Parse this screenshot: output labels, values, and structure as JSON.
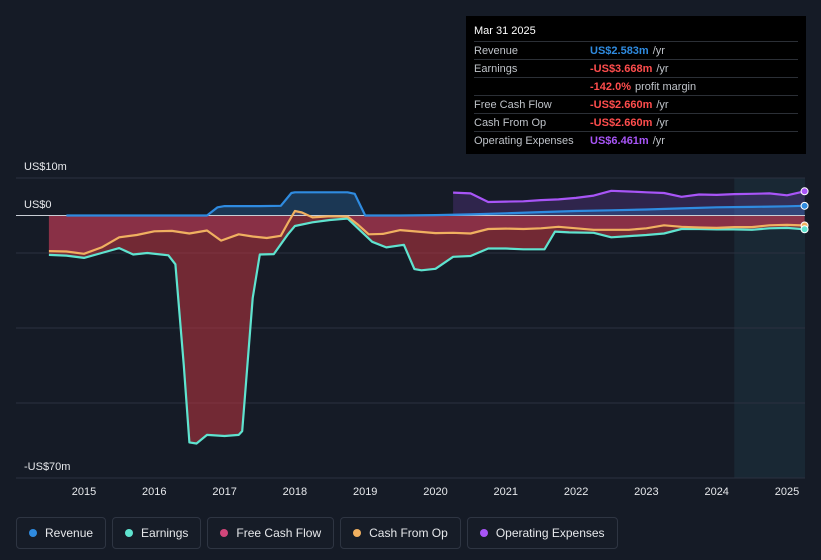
{
  "tooltip": {
    "date": "Mar 31 2025",
    "rows": [
      {
        "label": "Revenue",
        "value": "US$2.583m",
        "unit": "/yr",
        "color": "#2f8be0"
      },
      {
        "label": "Earnings",
        "value": "-US$3.668m",
        "unit": "/yr",
        "color": "#ff4d4d"
      },
      {
        "label": "",
        "value": "-142.0%",
        "unit": "profit margin",
        "color": "#ff4d4d"
      },
      {
        "label": "Free Cash Flow",
        "value": "-US$2.660m",
        "unit": "/yr",
        "color": "#ff4d4d"
      },
      {
        "label": "Cash From Op",
        "value": "-US$2.660m",
        "unit": "/yr",
        "color": "#ff4d4d"
      },
      {
        "label": "Operating Expenses",
        "value": "US$6.461m",
        "unit": "/yr",
        "color": "#a855f7"
      }
    ]
  },
  "legend": [
    {
      "label": "Revenue",
      "color": "#2f8be0"
    },
    {
      "label": "Earnings",
      "color": "#5fe3cf"
    },
    {
      "label": "Free Cash Flow",
      "color": "#d1467a"
    },
    {
      "label": "Cash From Op",
      "color": "#f0b060"
    },
    {
      "label": "Operating Expenses",
      "color": "#a855f7"
    }
  ],
  "chart_data": {
    "type": "line",
    "title": "",
    "y_axis": {
      "top_label": "US$10m",
      "zero_label": "US$0",
      "bottom_label": "-US$70m",
      "ylim": [
        -70,
        10
      ],
      "unit": "US$m"
    },
    "x_axis": {
      "ticks": [
        "2015",
        "2016",
        "2017",
        "2018",
        "2019",
        "2020",
        "2021",
        "2022",
        "2023",
        "2024",
        "2025"
      ],
      "range": [
        2014.5,
        2025.25
      ]
    },
    "forecast_shading_start": 2024.25,
    "series": [
      {
        "name": "Revenue",
        "color": "#2f8be0",
        "points": [
          [
            2014.75,
            0
          ],
          [
            2016.0,
            0
          ],
          [
            2016.75,
            0
          ],
          [
            2016.9,
            2.2
          ],
          [
            2017.0,
            2.5
          ],
          [
            2017.5,
            2.5
          ],
          [
            2017.8,
            2.6
          ],
          [
            2017.95,
            6.0
          ],
          [
            2018.0,
            6.2
          ],
          [
            2018.75,
            6.2
          ],
          [
            2018.85,
            5.8
          ],
          [
            2019.0,
            0
          ],
          [
            2019.5,
            0
          ],
          [
            2020.0,
            0.1
          ],
          [
            2020.5,
            0.3
          ],
          [
            2021.0,
            0.6
          ],
          [
            2021.5,
            0.9
          ],
          [
            2022.0,
            1.2
          ],
          [
            2022.5,
            1.4
          ],
          [
            2023.0,
            1.6
          ],
          [
            2023.5,
            1.9
          ],
          [
            2024.0,
            2.2
          ],
          [
            2024.5,
            2.3
          ],
          [
            2025.0,
            2.45
          ],
          [
            2025.25,
            2.583
          ]
        ]
      },
      {
        "name": "Earnings",
        "color": "#5fe3cf",
        "points": [
          [
            2014.5,
            -10.5
          ],
          [
            2014.75,
            -10.7
          ],
          [
            2015.0,
            -11.3
          ],
          [
            2015.25,
            -10.0
          ],
          [
            2015.5,
            -8.7
          ],
          [
            2015.7,
            -10.4
          ],
          [
            2015.9,
            -10.0
          ],
          [
            2016.2,
            -10.6
          ],
          [
            2016.3,
            -13.0
          ],
          [
            2016.42,
            -40.0
          ],
          [
            2016.5,
            -60.5
          ],
          [
            2016.6,
            -60.8
          ],
          [
            2016.75,
            -58.5
          ],
          [
            2017.0,
            -58.8
          ],
          [
            2017.2,
            -58.5
          ],
          [
            2017.25,
            -57.5
          ],
          [
            2017.4,
            -22.0
          ],
          [
            2017.5,
            -10.4
          ],
          [
            2017.7,
            -10.3
          ],
          [
            2017.9,
            -5.0
          ],
          [
            2018.0,
            -2.8
          ],
          [
            2018.25,
            -1.8
          ],
          [
            2018.5,
            -1.2
          ],
          [
            2018.75,
            -0.8
          ],
          [
            2018.9,
            -3.5
          ],
          [
            2019.1,
            -7.0
          ],
          [
            2019.3,
            -8.5
          ],
          [
            2019.55,
            -7.8
          ],
          [
            2019.7,
            -14.3
          ],
          [
            2019.8,
            -14.6
          ],
          [
            2020.0,
            -14.2
          ],
          [
            2020.25,
            -11.0
          ],
          [
            2020.5,
            -10.8
          ],
          [
            2020.75,
            -8.8
          ],
          [
            2021.0,
            -8.8
          ],
          [
            2021.25,
            -9.0
          ],
          [
            2021.55,
            -9.0
          ],
          [
            2021.7,
            -4.3
          ],
          [
            2021.9,
            -4.5
          ],
          [
            2022.25,
            -4.6
          ],
          [
            2022.5,
            -5.8
          ],
          [
            2022.75,
            -5.5
          ],
          [
            2023.0,
            -5.2
          ],
          [
            2023.25,
            -4.8
          ],
          [
            2023.5,
            -3.6
          ],
          [
            2023.75,
            -3.6
          ],
          [
            2024.0,
            -3.7
          ],
          [
            2024.25,
            -3.7
          ],
          [
            2024.5,
            -3.8
          ],
          [
            2024.75,
            -3.4
          ],
          [
            2025.0,
            -3.3
          ],
          [
            2025.25,
            -3.668
          ]
        ]
      },
      {
        "name": "Free Cash Flow",
        "color": "#d1467a",
        "points": [
          [
            2014.5,
            0
          ],
          [
            2025.25,
            -2.66
          ]
        ]
      },
      {
        "name": "Cash From Op",
        "color": "#f0b060",
        "points": [
          [
            2014.5,
            -9.5
          ],
          [
            2014.75,
            -9.6
          ],
          [
            2015.0,
            -10.2
          ],
          [
            2015.25,
            -8.5
          ],
          [
            2015.5,
            -5.8
          ],
          [
            2015.75,
            -5.2
          ],
          [
            2016.0,
            -4.2
          ],
          [
            2016.25,
            -4.1
          ],
          [
            2016.5,
            -4.8
          ],
          [
            2016.75,
            -4.0
          ],
          [
            2016.95,
            -6.7
          ],
          [
            2017.2,
            -5.0
          ],
          [
            2017.4,
            -5.6
          ],
          [
            2017.6,
            -6.0
          ],
          [
            2017.8,
            -5.4
          ],
          [
            2017.9,
            -2.0
          ],
          [
            2018.0,
            1.2
          ],
          [
            2018.1,
            0.8
          ],
          [
            2018.25,
            -0.5
          ],
          [
            2018.5,
            -0.2
          ],
          [
            2018.75,
            -0.3
          ],
          [
            2018.9,
            -2.5
          ],
          [
            2019.05,
            -5.0
          ],
          [
            2019.25,
            -4.9
          ],
          [
            2019.5,
            -3.9
          ],
          [
            2019.75,
            -4.3
          ],
          [
            2020.0,
            -4.7
          ],
          [
            2020.25,
            -4.6
          ],
          [
            2020.5,
            -4.8
          ],
          [
            2020.75,
            -3.6
          ],
          [
            2021.0,
            -3.5
          ],
          [
            2021.25,
            -3.6
          ],
          [
            2021.5,
            -3.4
          ],
          [
            2021.75,
            -3.0
          ],
          [
            2022.0,
            -3.4
          ],
          [
            2022.25,
            -3.8
          ],
          [
            2022.5,
            -3.8
          ],
          [
            2022.75,
            -3.8
          ],
          [
            2023.0,
            -3.4
          ],
          [
            2023.25,
            -2.6
          ],
          [
            2023.5,
            -3.0
          ],
          [
            2023.75,
            -3.2
          ],
          [
            2024.0,
            -3.3
          ],
          [
            2024.25,
            -3.1
          ],
          [
            2024.5,
            -3.1
          ],
          [
            2024.75,
            -2.6
          ],
          [
            2025.0,
            -2.5
          ],
          [
            2025.25,
            -2.66
          ]
        ]
      },
      {
        "name": "Operating Expenses",
        "color": "#a855f7",
        "points": [
          [
            2020.25,
            6.1
          ],
          [
            2020.5,
            5.9
          ],
          [
            2020.75,
            3.6
          ],
          [
            2021.0,
            3.7
          ],
          [
            2021.25,
            3.8
          ],
          [
            2021.5,
            4.1
          ],
          [
            2021.75,
            4.3
          ],
          [
            2022.0,
            4.7
          ],
          [
            2022.25,
            5.3
          ],
          [
            2022.5,
            6.6
          ],
          [
            2022.75,
            6.4
          ],
          [
            2023.0,
            6.2
          ],
          [
            2023.25,
            6.0
          ],
          [
            2023.5,
            5.0
          ],
          [
            2023.75,
            5.6
          ],
          [
            2024.0,
            5.5
          ],
          [
            2024.25,
            5.7
          ],
          [
            2024.5,
            5.8
          ],
          [
            2024.75,
            5.9
          ],
          [
            2025.0,
            5.4
          ],
          [
            2025.25,
            6.461
          ]
        ]
      }
    ]
  }
}
